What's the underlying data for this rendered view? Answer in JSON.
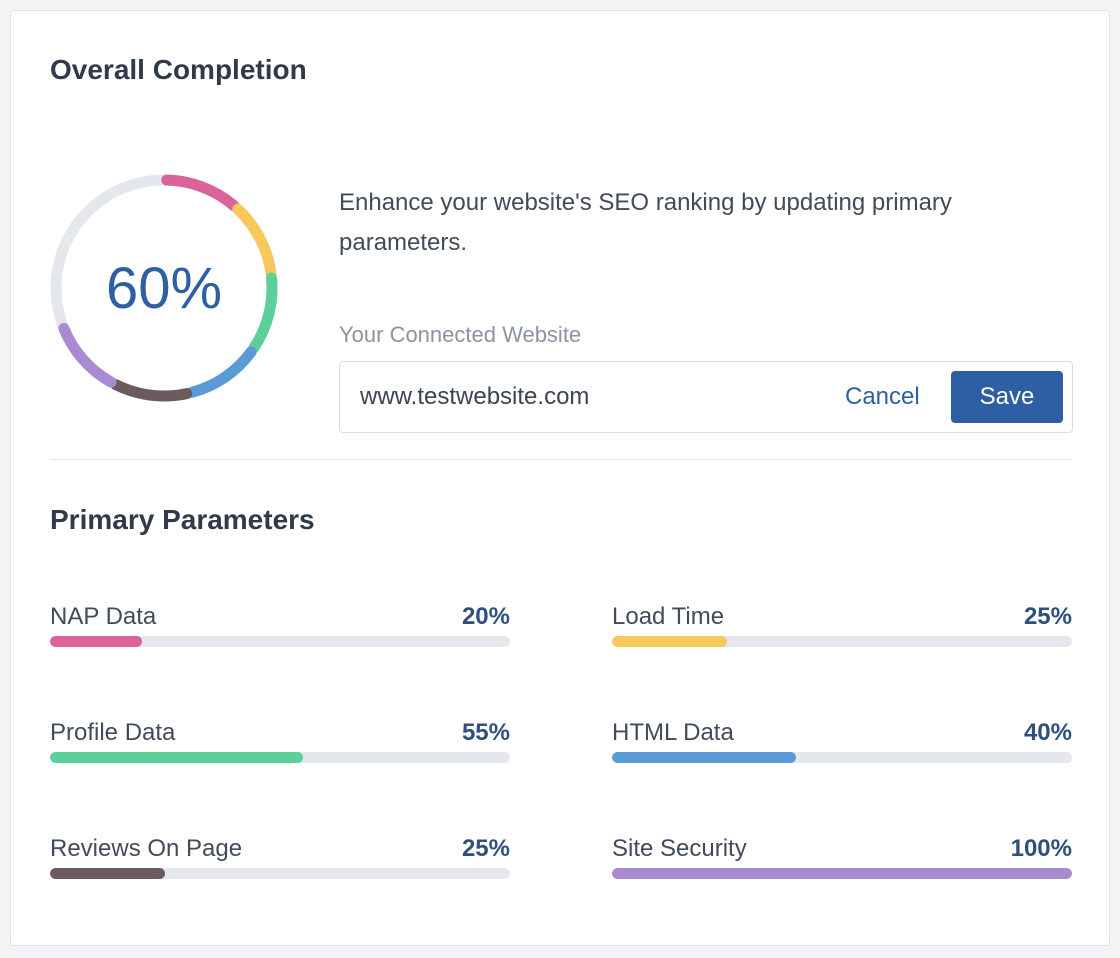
{
  "overall": {
    "title": "Overall Completion",
    "percent_label": "60%",
    "percent": 60,
    "description": "Enhance your website's SEO ranking by updating primary parameters.",
    "website_label": "Your Connected Website",
    "website_value": "www.testwebsite.com",
    "cancel_label": "Cancel",
    "save_label": "Save",
    "ring_track_color": "#e4e7eb"
  },
  "primary": {
    "title": "Primary Parameters",
    "items": [
      {
        "name": "NAP Data",
        "value_label": "20%",
        "value": 0.2,
        "color": "#d9639a"
      },
      {
        "name": "Load Time",
        "value_label": "25%",
        "value": 0.25,
        "color": "#f7c85a"
      },
      {
        "name": "Profile Data",
        "value_label": "55%",
        "value": 0.55,
        "color": "#5ccf9a"
      },
      {
        "name": "HTML Data",
        "value_label": "40%",
        "value": 0.4,
        "color": "#5a9bd5"
      },
      {
        "name": "Reviews On Page",
        "value_label": "25%",
        "value": 0.25,
        "color": "#6b5a5e"
      },
      {
        "name": "Site Security",
        "value_label": "100%",
        "value": 1.0,
        "color": "#a88bd1"
      }
    ]
  },
  "colors": {
    "accent": "#2e5fa3",
    "heading": "#2f3a4a",
    "track": "#e4e7eb"
  }
}
